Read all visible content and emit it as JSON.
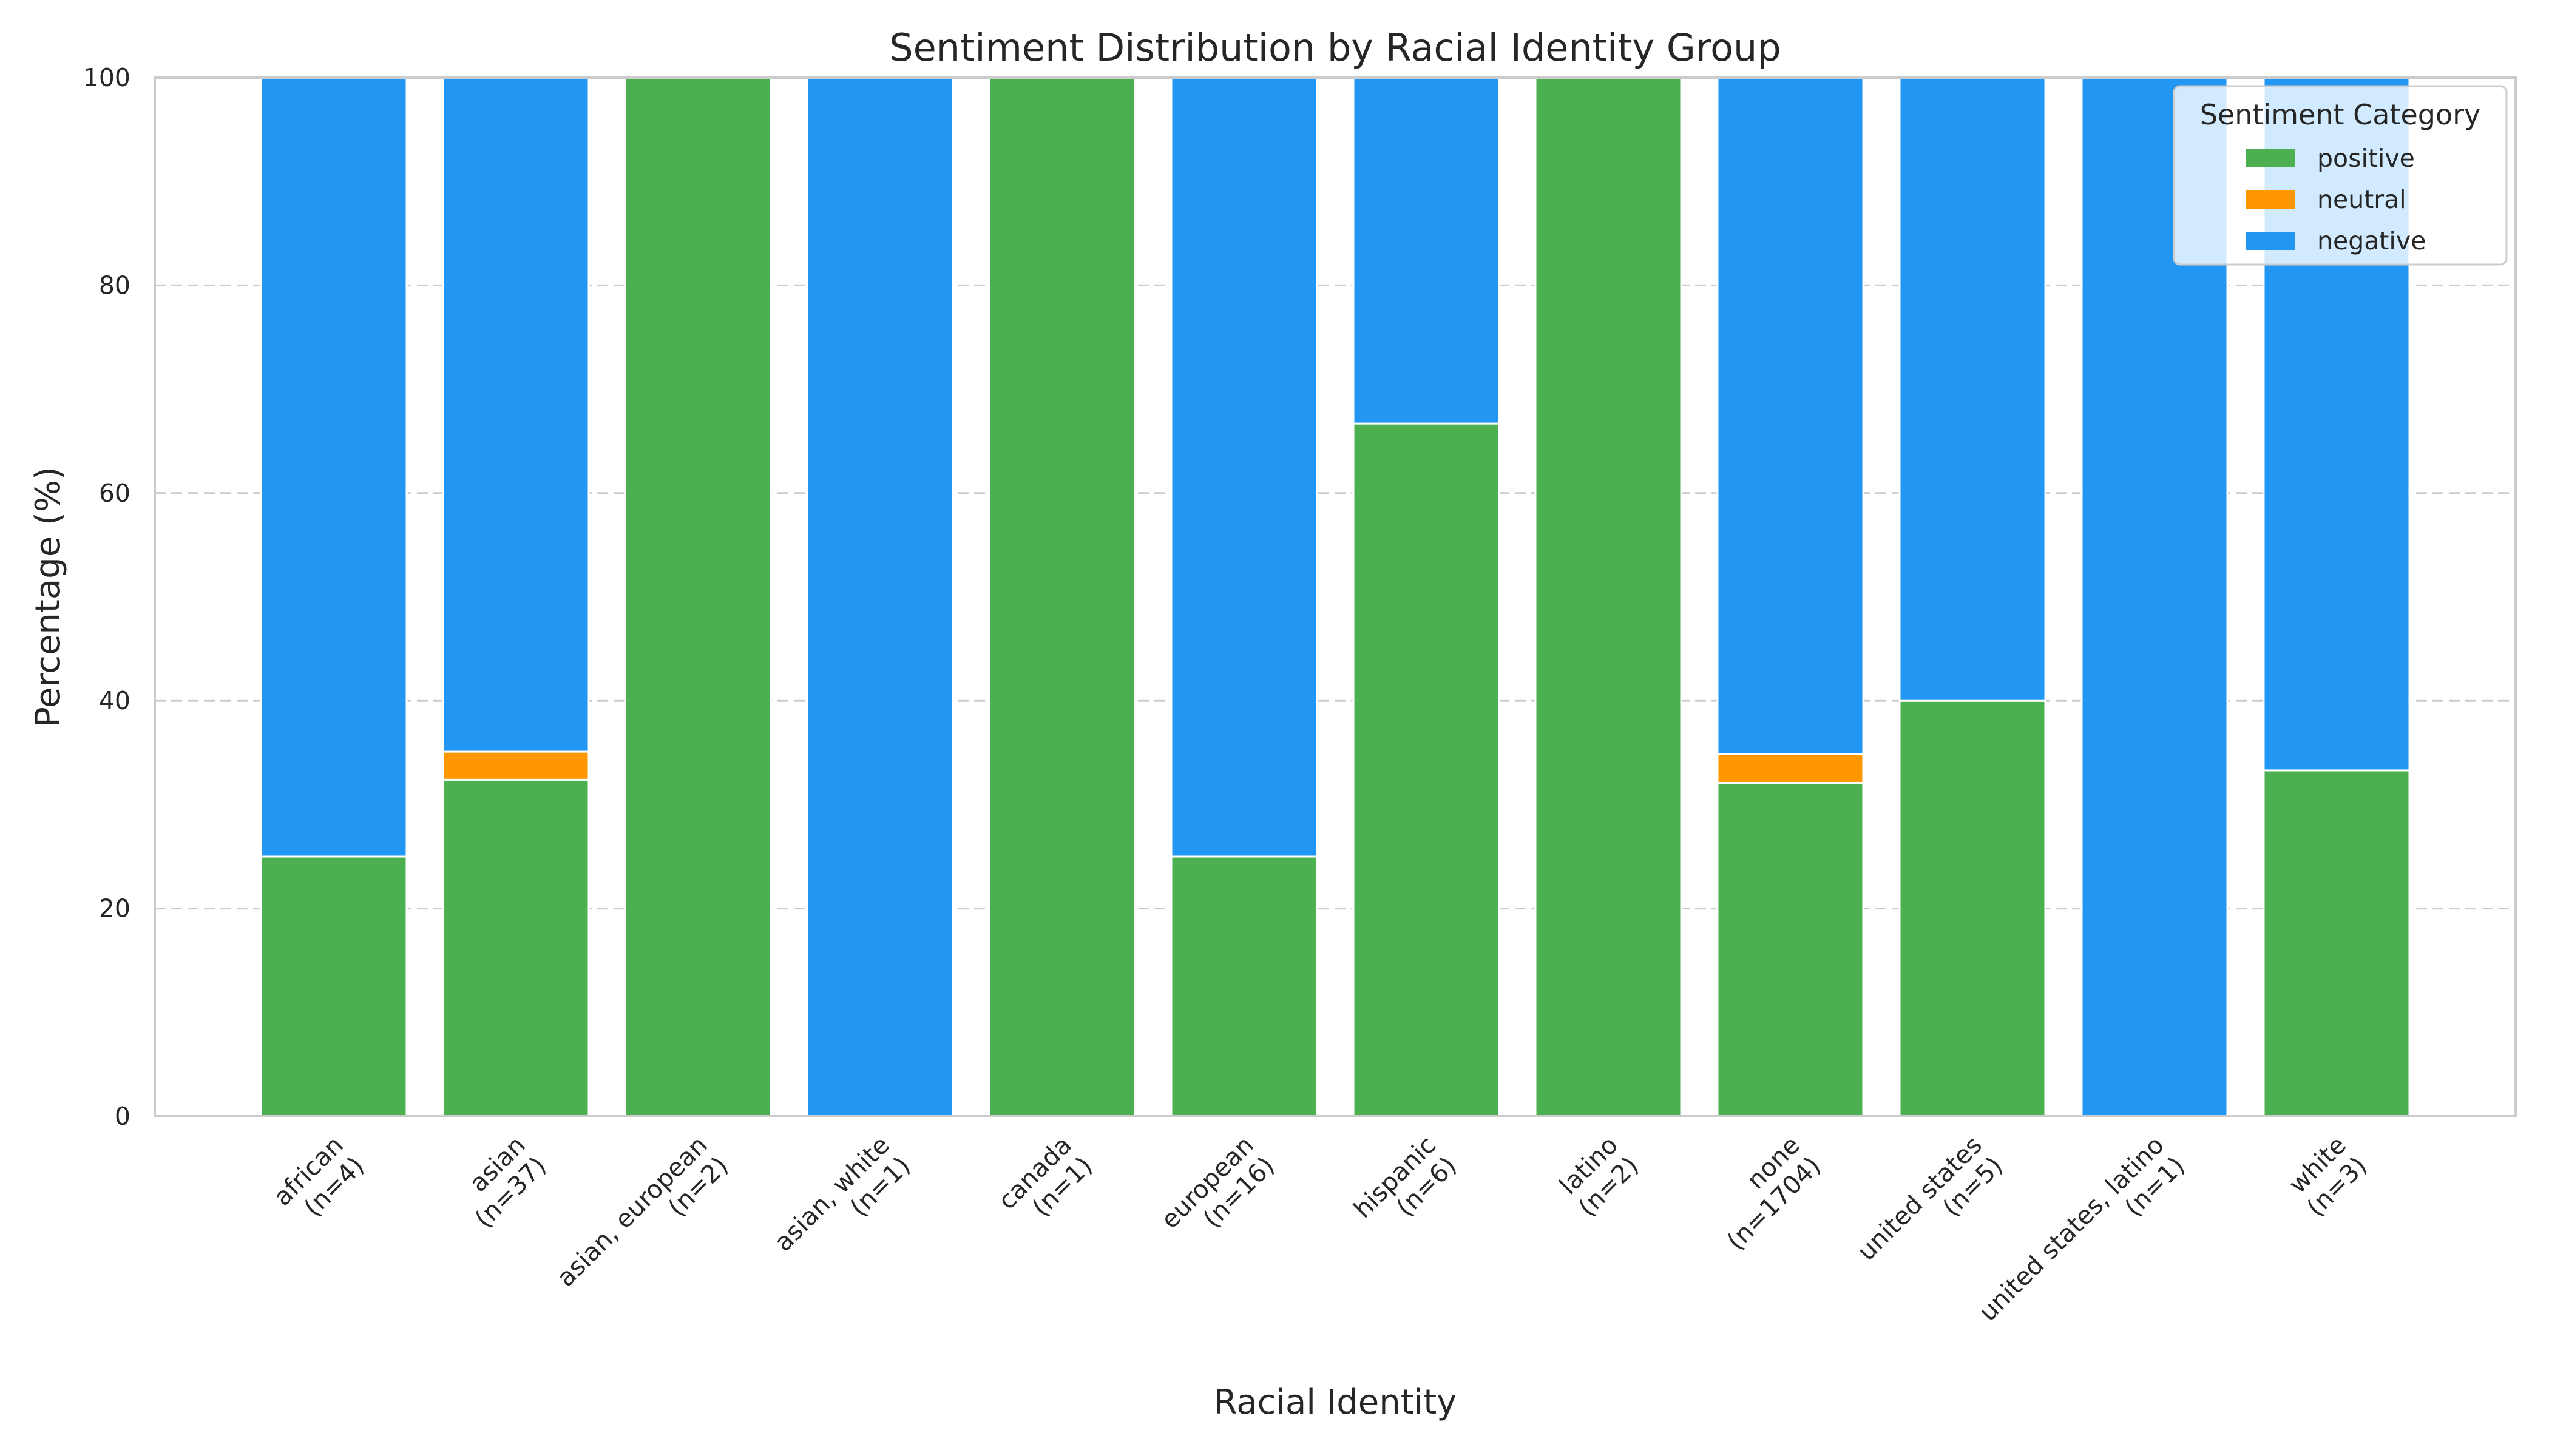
{
  "chart_data": {
    "type": "bar",
    "stacked": true,
    "title": "Sentiment Distribution by Racial Identity Group",
    "xlabel": "Racial Identity",
    "ylabel": "Percentage (%)",
    "ylim": [
      0,
      100
    ],
    "yticks": [
      0,
      20,
      40,
      60,
      80,
      100
    ],
    "grid": "horizontal dashed",
    "categories": [
      [
        "african",
        "(n=4)"
      ],
      [
        "asian",
        "(n=37)"
      ],
      [
        "asian, european",
        "(n=2)"
      ],
      [
        "asian, white",
        "(n=1)"
      ],
      [
        "canada",
        "(n=1)"
      ],
      [
        "european",
        "(n=16)"
      ],
      [
        "hispanic",
        "(n=6)"
      ],
      [
        "latino",
        "(n=2)"
      ],
      [
        "none",
        "(n=1704)"
      ],
      [
        "united states",
        "(n=5)"
      ],
      [
        "united states, latino",
        "(n=1)"
      ],
      [
        "white",
        "(n=3)"
      ]
    ],
    "series": [
      {
        "name": "positive",
        "color": "#4caf50",
        "values": [
          25,
          32.4,
          100,
          0,
          100,
          25,
          66.7,
          100,
          32.1,
          40,
          0,
          33.3
        ]
      },
      {
        "name": "neutral",
        "color": "#ff9800",
        "values": [
          0,
          2.7,
          0,
          0,
          0,
          0,
          0,
          0,
          2.8,
          0,
          0,
          0
        ]
      },
      {
        "name": "negative",
        "color": "#2196f3",
        "values": [
          75,
          64.9,
          0,
          100,
          0,
          75,
          33.3,
          0,
          65.1,
          60,
          100,
          66.7
        ]
      }
    ],
    "legend": {
      "title": "Sentiment Category",
      "placement": "top-right"
    }
  }
}
